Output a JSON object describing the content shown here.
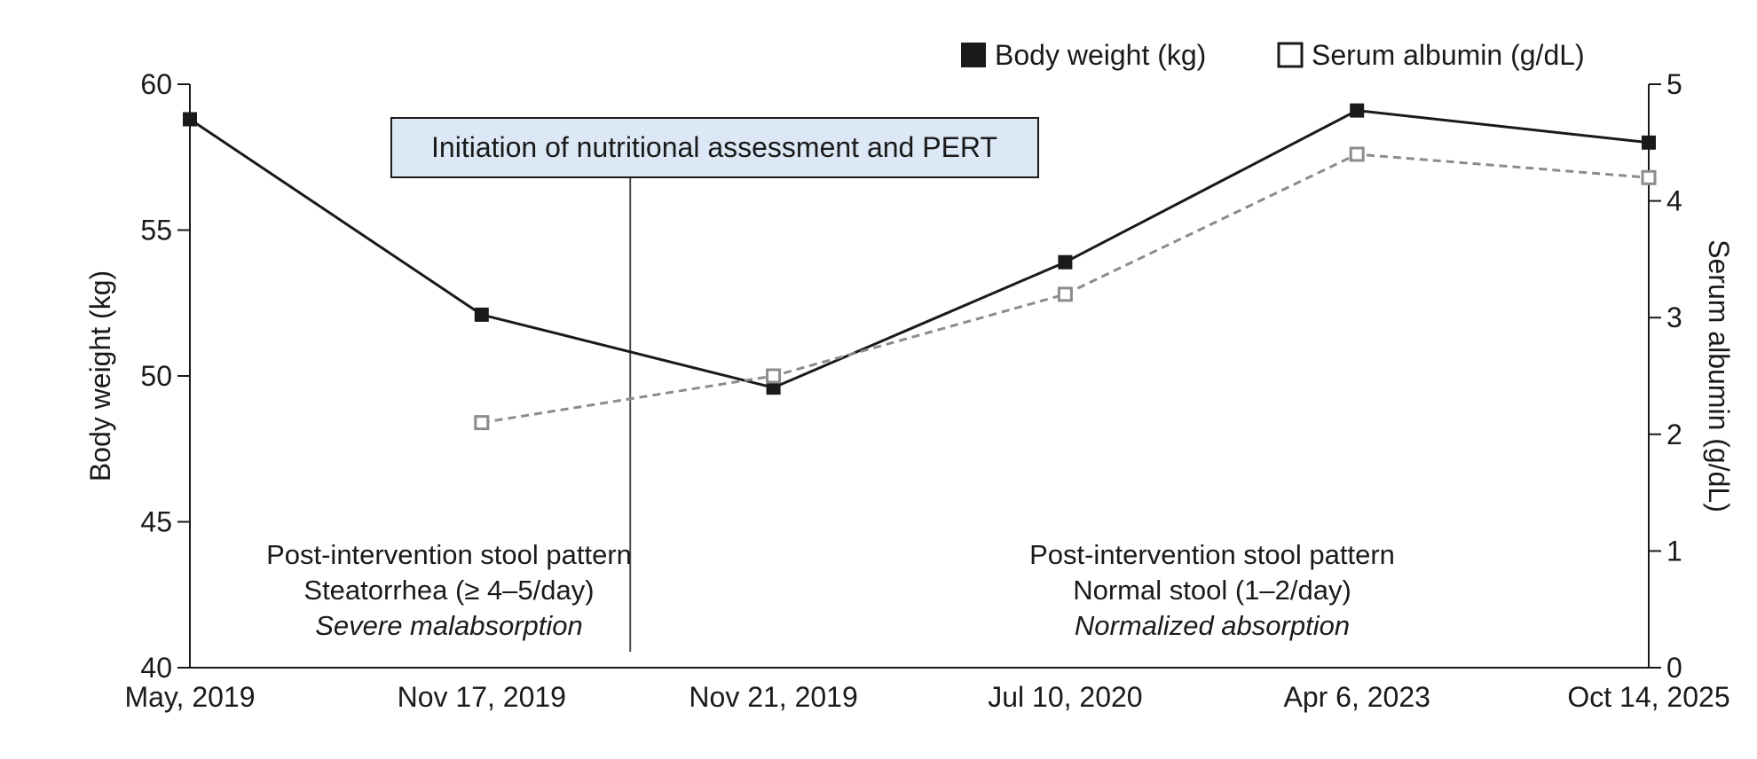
{
  "chart_data": {
    "type": "line",
    "categories": [
      "May, 2019",
      "Nov 17, 2019",
      "Nov 21, 2019",
      "Jul 10, 2020",
      "Apr 6, 2023",
      "Oct 14, 2025"
    ],
    "series": [
      {
        "name": "Body weight (kg)",
        "axis": "left",
        "values": [
          58.8,
          52.1,
          49.6,
          53.9,
          59.1,
          58.0
        ],
        "color": "#1a1a1a",
        "style": "solid",
        "marker": "filled-square"
      },
      {
        "name": "Serum albumin (g/dL)",
        "axis": "right",
        "values": [
          null,
          2.1,
          2.5,
          3.2,
          4.4,
          4.2
        ],
        "color": "#8c8c8c",
        "style": "dashed",
        "marker": "open-square"
      }
    ],
    "xlabel": "",
    "ylabel": "Body weight (kg)",
    "ylim": [
      40,
      60
    ],
    "yticks": [
      40,
      45,
      50,
      55,
      60
    ],
    "y2label": "Serum albumin (g/dL)",
    "y2lim": [
      0,
      5
    ],
    "y2ticks": [
      0,
      1,
      2,
      3,
      4,
      5
    ],
    "legend_position": "top-right",
    "grid": false,
    "annotations": {
      "callout": {
        "text": "Initiation of nutritional assessment and PERT",
        "between": [
          "Nov 17, 2019",
          "Nov 21, 2019"
        ],
        "fill": "#dce8f5"
      },
      "left_note": {
        "lines": [
          "Post-intervention stool pattern",
          "Steatorrhea (≥ 4–5/day)"
        ],
        "italic": "Severe malabsorption"
      },
      "right_note": {
        "lines": [
          "Post-intervention stool pattern",
          "Normal stool (1–2/day)"
        ],
        "italic": "Normalized absorption"
      }
    }
  }
}
